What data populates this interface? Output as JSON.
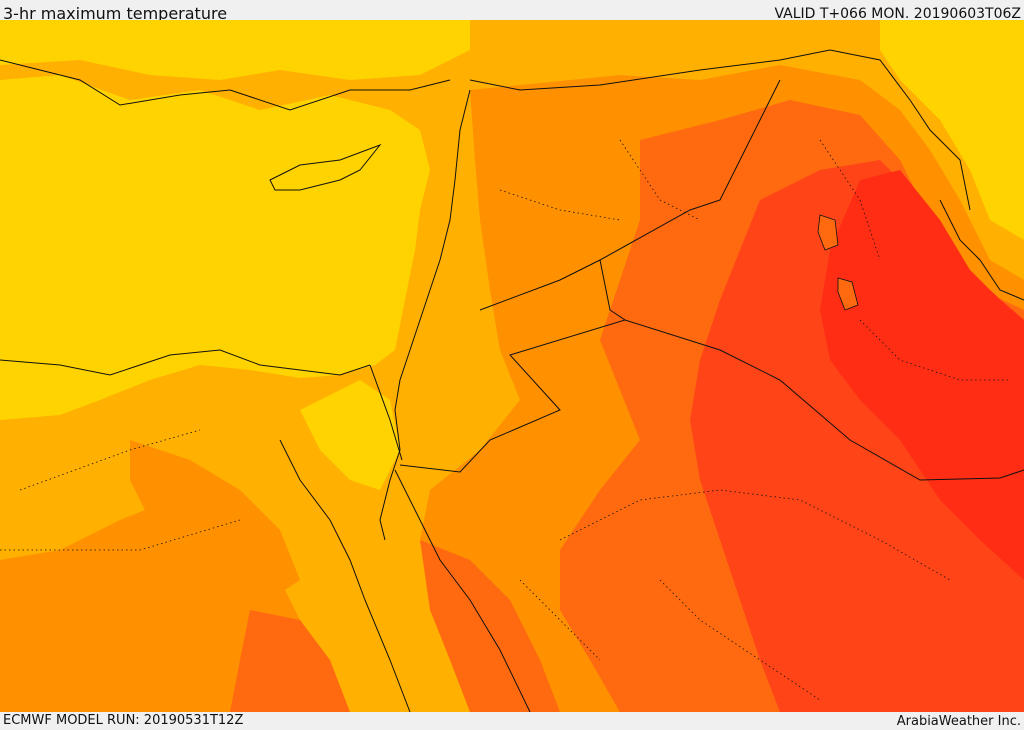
{
  "header": {
    "title": "3-hr maximum temperature",
    "valid": "VALID T+066 MON. 20190603T06Z"
  },
  "footer": {
    "model_run": "ECMWF MODEL RUN: 20190531T12Z",
    "credit": "ArabiaWeather Inc."
  },
  "map": {
    "region": "Eastern Mediterranean / Middle East",
    "palette": {
      "level_1": "#ffd300",
      "level_2": "#ffb000",
      "level_3": "#ff9000",
      "level_4": "#ff6a10",
      "level_5": "#ff4418",
      "level_6": "#ff2d14",
      "border": "#111111"
    }
  }
}
